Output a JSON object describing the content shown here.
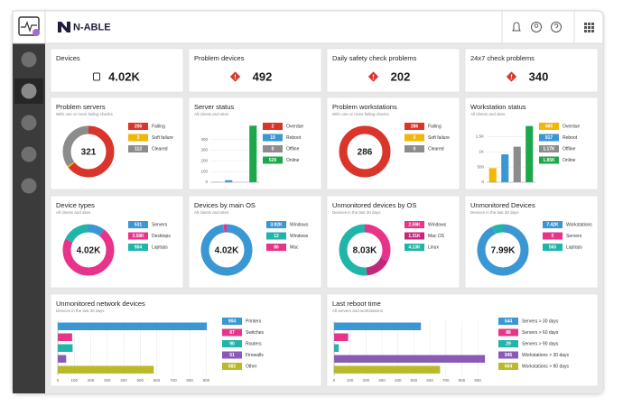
{
  "header": {
    "logo": "N-ABLE"
  },
  "stats": [
    {
      "title": "Devices",
      "value": "4.02K"
    },
    {
      "title": "Problem devices",
      "value": "492"
    },
    {
      "title": "Daily safety check problems",
      "value": "202"
    },
    {
      "title": "24x7 check problems",
      "value": "340"
    }
  ],
  "widgets": [
    {
      "title": "Problem servers",
      "subtitle": "With one or more failing checks",
      "chart": {
        "type": "donut",
        "center": "321",
        "categories": [
          "Failing",
          "Soft failure",
          "Cleared"
        ],
        "values": [
          206,
          3,
          112
        ],
        "colors": [
          "#d9352b",
          "#f2b705",
          "#8c8c8c"
        ]
      }
    },
    {
      "title": "Server status",
      "subtitle": "All clients and sites",
      "chart": {
        "type": "bar",
        "categories": [
          "Overdue",
          "Reboot",
          "Offline",
          "Online"
        ],
        "values": [
          2,
          19,
          0,
          529
        ],
        "colors": [
          "#d9352b",
          "#3a97d4",
          "#8c8c8c",
          "#1aa84a"
        ],
        "ylim": [
          0,
          540
        ],
        "yticks": [
          0,
          100,
          200,
          300,
          400
        ]
      }
    },
    {
      "title": "Problem workstations",
      "subtitle": "With one or more failing checks",
      "chart": {
        "type": "donut",
        "center": "286",
        "categories": [
          "Failing",
          "Soft failure",
          "Cleared"
        ],
        "values": [
          286,
          0,
          0
        ],
        "colors": [
          "#d9352b",
          "#f2b705",
          "#8c8c8c"
        ]
      }
    },
    {
      "title": "Workstation status",
      "subtitle": "All clients and sites",
      "chart": {
        "type": "bar",
        "categories": [
          "Overdue",
          "Reboot",
          "Offline",
          "Online"
        ],
        "values": [
          465,
          917,
          1170,
          1850
        ],
        "value_labels": [
          "465",
          "917",
          "1.17K",
          "1.85K"
        ],
        "colors": [
          "#f2b705",
          "#3a97d4",
          "#8c8c8c",
          "#1aa84a"
        ],
        "ylim": [
          0,
          1900
        ],
        "yticks": [
          0,
          500,
          {
            "value": 1000,
            "label": "1K"
          },
          {
            "value": 1500,
            "label": "1.5K"
          }
        ]
      }
    },
    {
      "title": "Device types",
      "subtitle": "All clients and sites",
      "chart": {
        "type": "donut",
        "center": "4.02K",
        "categories": [
          "Servers",
          "Desktops",
          "Laptops"
        ],
        "values": [
          531,
          3580,
          904
        ],
        "value_labels": [
          "531",
          "3.58K",
          "904"
        ],
        "colors": [
          "#3a97d4",
          "#e8338a",
          "#20b5a8"
        ]
      }
    },
    {
      "title": "Devices by main OS",
      "subtitle": "All clients and sites",
      "chart": {
        "type": "donut",
        "center": "4.02K",
        "categories": [
          "Windows",
          "Windows",
          "Mac"
        ],
        "values": [
          3920,
          12,
          86
        ],
        "value_labels": [
          "3.92K",
          "12",
          "86"
        ],
        "colors": [
          "#3a97d4",
          "#20b5a8",
          "#e8338a"
        ]
      }
    },
    {
      "title": "Unmonitored devices by OS",
      "subtitle": "Devices in the last 30 days",
      "chart": {
        "type": "donut",
        "center": "8.03K",
        "categories": [
          "Windows",
          "Mac OS",
          "Linux"
        ],
        "values": [
          2590,
          1310,
          4130
        ],
        "value_labels": [
          "2.59K",
          "1.31K",
          "4.13K"
        ],
        "colors": [
          "#e8338a",
          "#c2287a",
          "#20b5a8"
        ]
      }
    },
    {
      "title": "Unmonitored Devices",
      "subtitle": "Devices in the last 30 days",
      "chart": {
        "type": "donut",
        "center": "7.99K",
        "categories": [
          "Workstations",
          "Servers",
          "Laptops"
        ],
        "values": [
          7420,
          5,
          565
        ],
        "value_labels": [
          "7.42K",
          "5",
          "565"
        ],
        "colors": [
          "#3a97d4",
          "#e8338a",
          "#20b5a8"
        ]
      }
    },
    {
      "title": "Unmonitored network devices",
      "subtitle": "Devices in the last 30 days",
      "chart": {
        "type": "hbar",
        "categories": [
          "Printers",
          "Switches",
          "Routers",
          "Firewalls",
          "Other"
        ],
        "values": [
          904,
          87,
          90,
          51,
          582
        ],
        "colors": [
          "#3a97d4",
          "#e8338a",
          "#20b5a8",
          "#8a5bb5",
          "#b9b92a"
        ],
        "xlim": [
          0,
          920
        ],
        "xticks": [
          0,
          100,
          200,
          300,
          400,
          500,
          600,
          700,
          800,
          900
        ]
      }
    },
    {
      "title": "Last reboot time",
      "subtitle": "All servers and workstations",
      "chart": {
        "type": "hbar",
        "categories": [
          "Servers > 30 days",
          "Servers > 60 days",
          "Servers > 90 days",
          "Workstations > 30 days",
          "Workstations > 90 days"
        ],
        "values": [
          544,
          88,
          29,
          945,
          664
        ],
        "colors": [
          "#3a97d4",
          "#e8338a",
          "#20b5a8",
          "#8a5bb5",
          "#b9b92a"
        ],
        "xlim": [
          0,
          950
        ],
        "xticks": [
          0,
          100,
          200,
          300,
          400,
          500,
          600,
          700,
          800,
          900
        ]
      }
    }
  ]
}
